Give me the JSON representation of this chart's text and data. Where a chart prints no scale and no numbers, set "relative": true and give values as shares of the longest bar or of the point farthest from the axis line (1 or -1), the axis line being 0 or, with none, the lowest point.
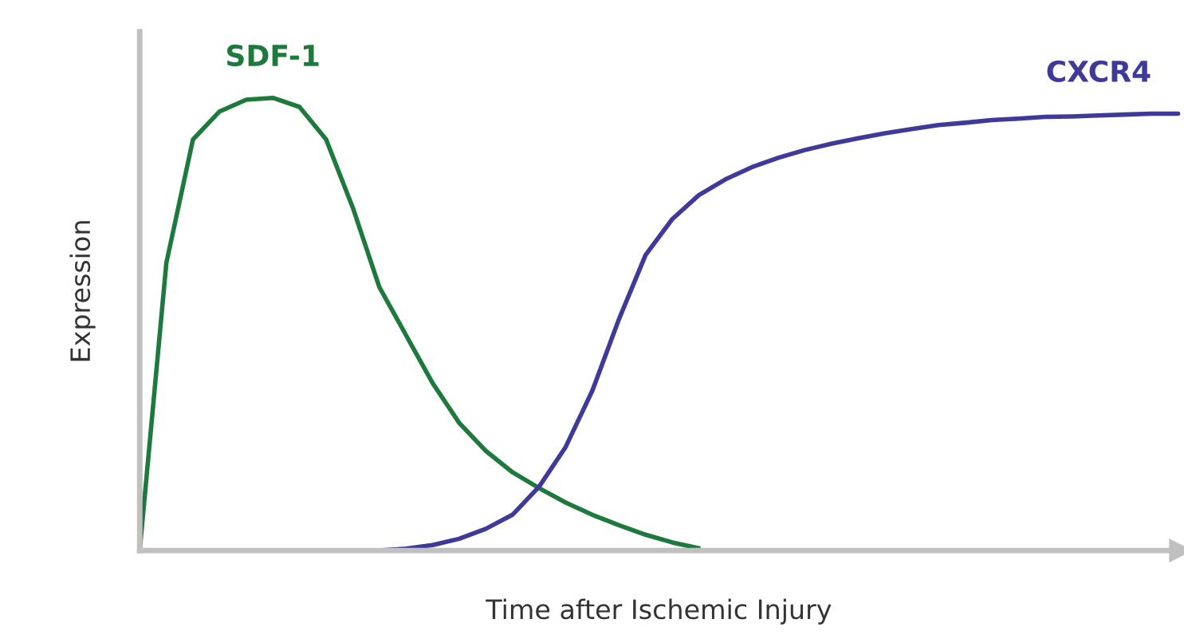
{
  "chart_data": {
    "type": "line",
    "relative": true,
    "xlabel": "Time after Ischemic Injury",
    "ylabel": "Expression",
    "legend": false,
    "categories": [
      null,
      null,
      null,
      null,
      null,
      null,
      null,
      null,
      null,
      null,
      null,
      null,
      null,
      null,
      null,
      null,
      null,
      null,
      null,
      null,
      null,
      null,
      null,
      null,
      null,
      null,
      null,
      null,
      null,
      null,
      null,
      null,
      null,
      null,
      null,
      null,
      null,
      null,
      null,
      null
    ],
    "series": [
      {
        "name": "SDF-1",
        "color": "#1e7a3c",
        "values": [
          0,
          0.635,
          0.908,
          0.97,
          0.996,
          1.0,
          0.98,
          0.908,
          0.758,
          0.582,
          0.476,
          0.37,
          0.282,
          0.22,
          0.173,
          0.138,
          0.106,
          0.079,
          0.056,
          0.035,
          0.018,
          0.005,
          null,
          null,
          null,
          null,
          null,
          null,
          null,
          null,
          null,
          null,
          null,
          null,
          null,
          null,
          null,
          null,
          null,
          null
        ]
      },
      {
        "name": "CXCR4",
        "color": "#3f3a9a",
        "values": [
          null,
          null,
          null,
          null,
          null,
          null,
          null,
          null,
          null,
          0,
          0.004,
          0.012,
          0.026,
          0.048,
          0.079,
          0.141,
          0.229,
          0.353,
          0.511,
          0.653,
          0.732,
          0.785,
          0.82,
          0.847,
          0.868,
          0.885,
          0.899,
          0.911,
          0.922,
          0.931,
          0.94,
          0.945,
          0.951,
          0.954,
          0.958,
          0.959,
          0.961,
          0.963,
          0.965,
          0.965
        ]
      }
    ]
  }
}
